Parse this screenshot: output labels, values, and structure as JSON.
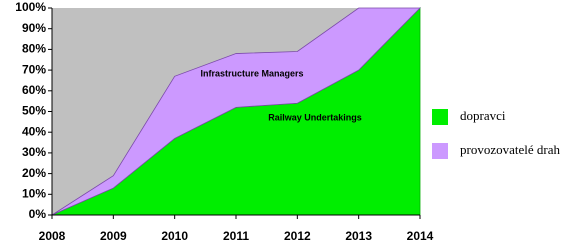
{
  "chart_data": {
    "type": "stacked_area",
    "x": [
      2008,
      2009,
      2010,
      2011,
      2012,
      2013,
      2014
    ],
    "xlim": [
      2008,
      2014
    ],
    "xticks": [
      2008,
      2009,
      2010,
      2011,
      2012,
      2013,
      2014
    ],
    "ylim": [
      0,
      100
    ],
    "yticks": [
      {
        "value": 0,
        "label": "0%"
      },
      {
        "value": 10,
        "label": "10%"
      },
      {
        "value": 20,
        "label": "20%"
      },
      {
        "value": 30,
        "label": "30%"
      },
      {
        "value": 40,
        "label": "40%"
      },
      {
        "value": 50,
        "label": "50%"
      },
      {
        "value": 60,
        "label": "60%"
      },
      {
        "value": 70,
        "label": "70%"
      },
      {
        "value": 80,
        "label": "80%"
      },
      {
        "value": 90,
        "label": "90%"
      },
      {
        "value": 100,
        "label": "100%"
      }
    ],
    "series": [
      {
        "name": "dopravci",
        "color": "#00ee00",
        "values": [
          0,
          13,
          37,
          52,
          54,
          70,
          100
        ]
      },
      {
        "name": "provozovatelé drah",
        "color": "#cc99ff",
        "values": [
          0,
          6,
          30,
          26,
          25,
          30,
          0
        ]
      }
    ],
    "annotations": [
      "Infrastructure Managers",
      "Railway Undertakings"
    ],
    "plot_background": "#c0c0c0",
    "legend": "right"
  }
}
